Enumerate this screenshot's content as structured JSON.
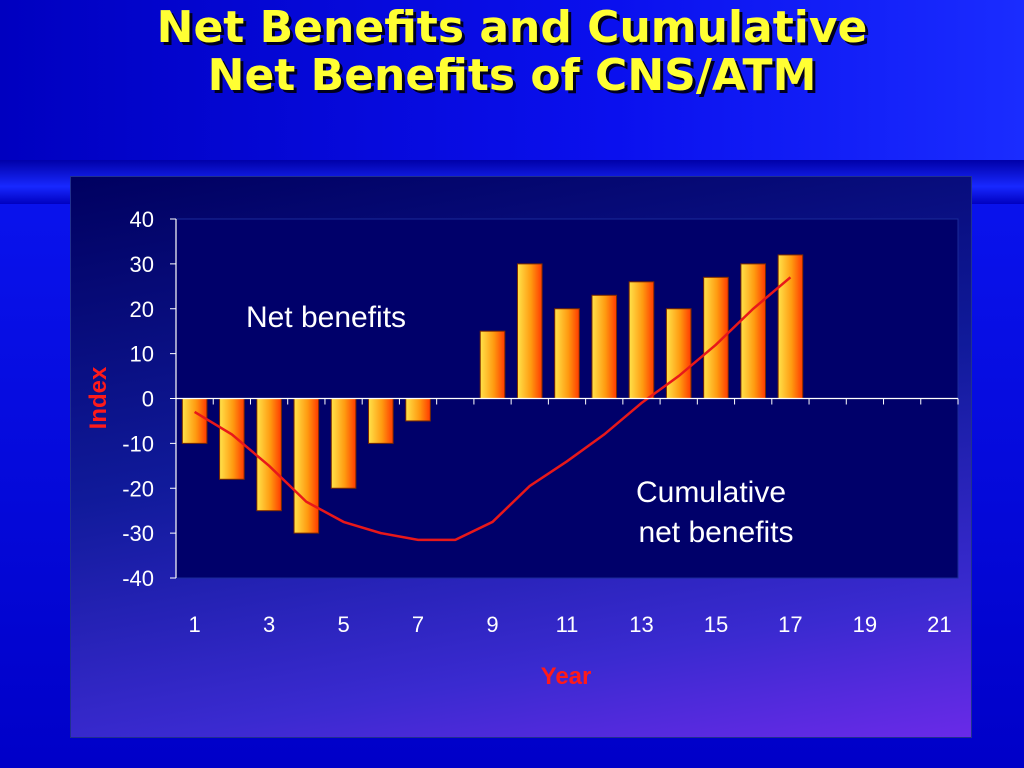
{
  "slide": {
    "title_line1": "Net Benefits and Cumulative",
    "title_line2": "Net Benefits of CNS/ATM"
  },
  "colors": {
    "title": "#ffff33",
    "axis_title": "#ff1a1a",
    "bar_light": "#ffe24a",
    "bar_dark": "#ff3a00",
    "line": "#e8181a",
    "plot_bg": "#00006a"
  },
  "chart_data": {
    "type": "bar",
    "title": "",
    "xlabel": "Year",
    "ylabel": "Index",
    "x": [
      1,
      2,
      3,
      4,
      5,
      6,
      7,
      8,
      9,
      10,
      11,
      12,
      13,
      14,
      15,
      16,
      17,
      18,
      19,
      20,
      21
    ],
    "xticks": [
      "1",
      "3",
      "5",
      "7",
      "9",
      "11",
      "13",
      "15",
      "17",
      "19",
      "21"
    ],
    "yticks": [
      "40",
      "30",
      "20",
      "10",
      "0",
      "-10",
      "-20",
      "-30",
      "-40"
    ],
    "ylim": [
      -40,
      40
    ],
    "series": [
      {
        "name": "Net benefits",
        "type": "bar",
        "values": [
          -10,
          -18,
          -25,
          -30,
          -20,
          -10,
          -5,
          0,
          15,
          30,
          20,
          23,
          26,
          20,
          27,
          30,
          32,
          null,
          null,
          null,
          null
        ]
      },
      {
        "name": "Cumulative net benefits",
        "type": "line",
        "values": [
          -3,
          -8,
          -15,
          -23,
          -27.5,
          -30,
          -31.5,
          -31.5,
          -27.5,
          -19.5,
          -14,
          -8,
          -1,
          5,
          12,
          20,
          27,
          null,
          null,
          null,
          null
        ]
      }
    ],
    "annotations": [
      {
        "text": "Net benefits"
      },
      {
        "text": "Cumulative"
      },
      {
        "text": "net benefits"
      }
    ],
    "grid": false,
    "legend": "none"
  }
}
